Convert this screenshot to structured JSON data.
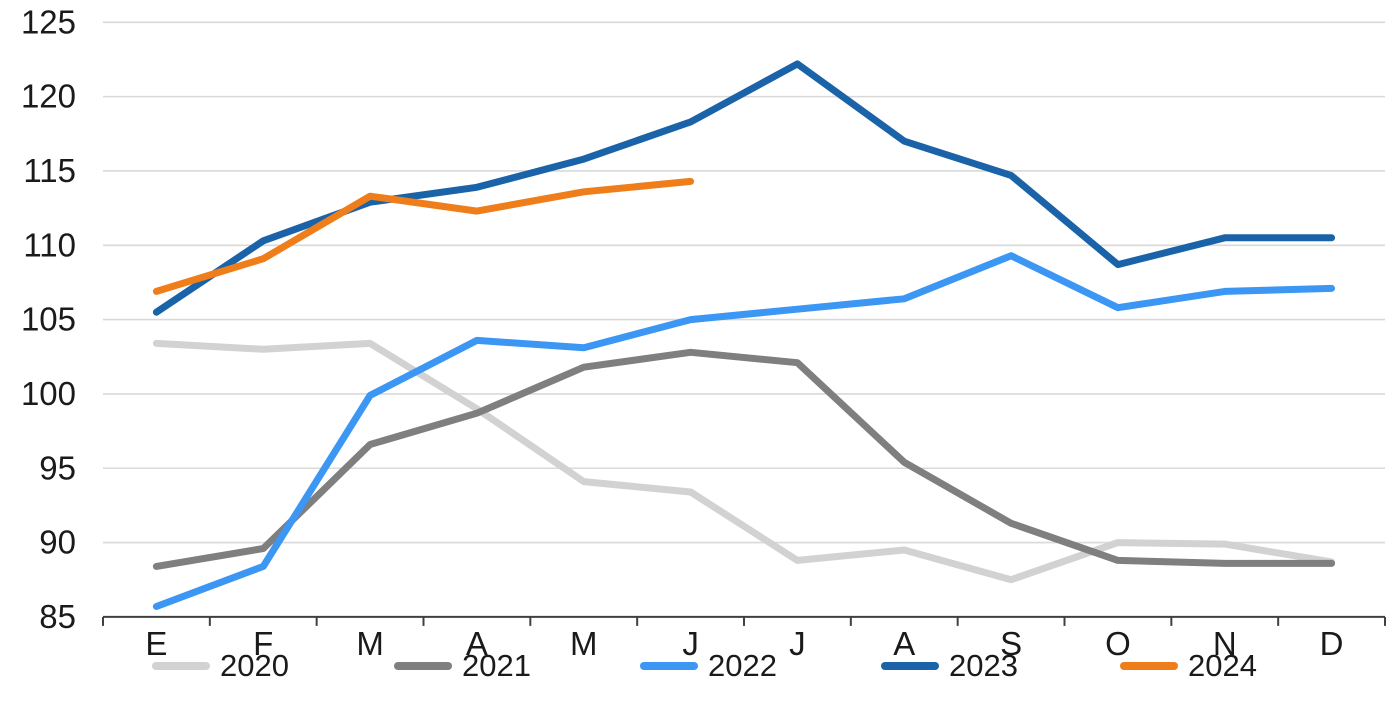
{
  "chart_data": {
    "type": "line",
    "title": "",
    "xlabel": "",
    "ylabel": "",
    "categories": [
      "E",
      "F",
      "M",
      "A",
      "M",
      "J",
      "J",
      "A",
      "S",
      "O",
      "N",
      "D"
    ],
    "series": [
      {
        "name": "2020",
        "color": "#d2d2d2",
        "values": [
          103.4,
          103.0,
          103.4,
          99.0,
          94.1,
          93.4,
          88.8,
          89.5,
          87.5,
          90.0,
          89.9,
          88.7
        ]
      },
      {
        "name": "2021",
        "color": "#7f7f7f",
        "values": [
          88.4,
          89.6,
          96.6,
          98.7,
          101.8,
          102.8,
          102.1,
          95.4,
          91.3,
          88.8,
          88.6,
          88.6
        ]
      },
      {
        "name": "2022",
        "color": "#3b97f3",
        "values": [
          85.7,
          88.4,
          99.9,
          103.6,
          103.1,
          105.0,
          105.7,
          106.4,
          109.3,
          105.8,
          106.9,
          107.1
        ]
      },
      {
        "name": "2023",
        "color": "#1a63a8",
        "values": [
          105.5,
          110.3,
          112.9,
          113.9,
          115.8,
          118.3,
          122.2,
          117.0,
          114.7,
          108.7,
          110.5,
          110.5
        ]
      },
      {
        "name": "2024",
        "color": "#ef7d1a",
        "values": [
          106.9,
          109.1,
          113.3,
          112.3,
          113.6,
          114.3
        ]
      }
    ],
    "ylim": [
      85,
      125
    ],
    "ytick_step": 5,
    "ytick_labels": [
      "85",
      "90",
      "95",
      "100",
      "105",
      "110",
      "115",
      "120",
      "125"
    ],
    "grid": "horizontal",
    "gridline_color": "#d9d9d9",
    "axis_color": "#404040",
    "tick_marks": "between-categories",
    "legend_position": "bottom",
    "legend_labels": [
      "2020",
      "2021",
      "2022",
      "2023",
      "2024"
    ]
  }
}
